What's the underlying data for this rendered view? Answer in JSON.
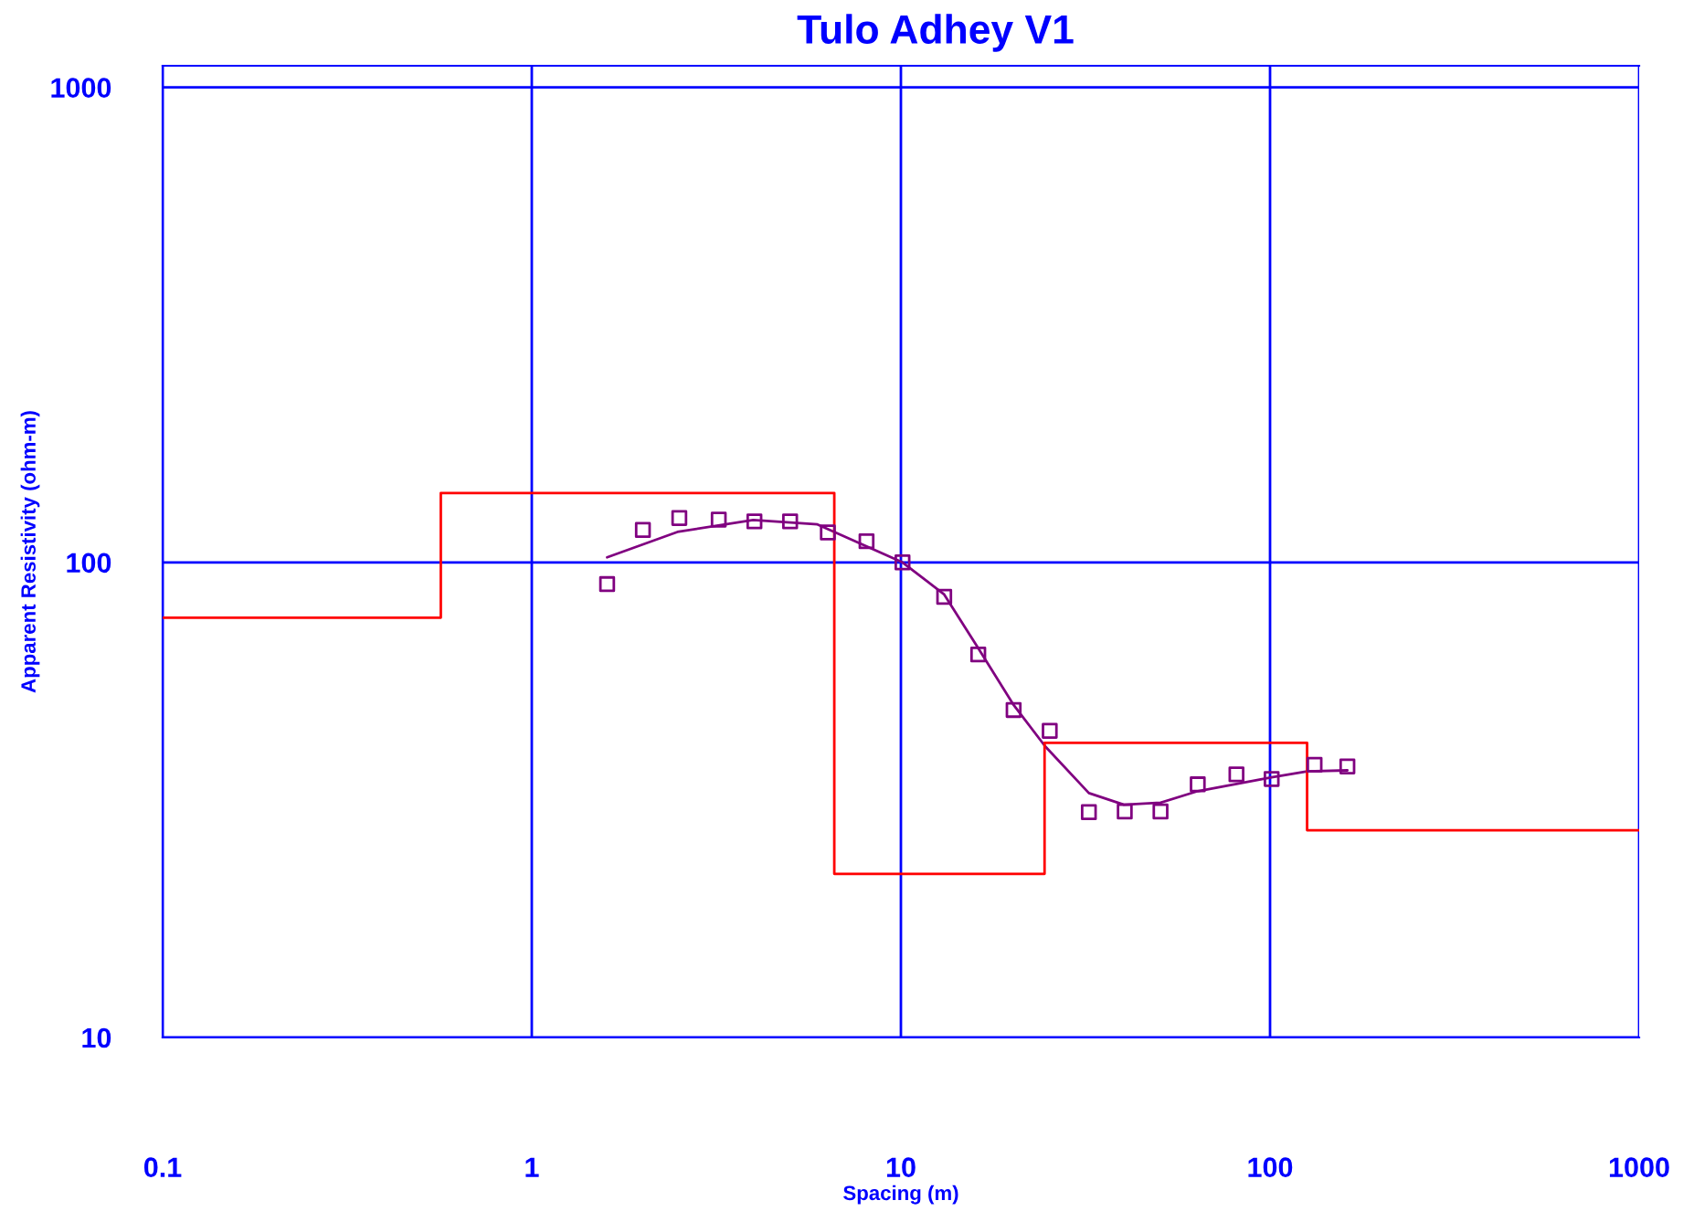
{
  "chart_data": {
    "type": "scatter",
    "title": "Tulo Adhey V1",
    "xlabel": "Spacing (m)",
    "ylabel": "Apparent Resistivity (ohm-m)",
    "log": "xy",
    "grid": true,
    "legend": false,
    "xlim": [
      0.1,
      1000
    ],
    "xticks": [
      0.1,
      1,
      10,
      100,
      1000
    ],
    "ylim": [
      10,
      1110
    ],
    "yticks": [
      10,
      100,
      1000
    ],
    "series": [
      {
        "marker": "square",
        "color": "#800080",
        "x": [
          1.6,
          2.0,
          2.51,
          3.21,
          4.01,
          5.01,
          6.34,
          8.07,
          10.1,
          13.1,
          16.2,
          20.2,
          25.3,
          32.3,
          40.4,
          50.5,
          63.7,
          81.1,
          101,
          132,
          162
        ],
        "values": [
          90,
          117,
          124,
          123,
          122,
          122,
          115.6,
          110.8,
          100,
          84.6,
          64,
          48.9,
          44.2,
          29.8,
          29.9,
          29.9,
          34.1,
          35.8,
          35.0,
          37.5,
          37.2
        ]
      },
      {
        "type": "line",
        "marker": "none",
        "color": "#800080",
        "x": [
          1.6,
          2.48,
          3.98,
          5.94,
          10.1,
          13.1,
          16.2,
          20.2,
          24.6,
          32.3,
          40.2,
          50.5,
          63.7,
          101,
          126,
          162
        ],
        "values": [
          102.5,
          115.9,
          122.8,
          120.2,
          100,
          85.6,
          66,
          50.1,
          41,
          32.7,
          30.9,
          31.2,
          33,
          35.3,
          36.3,
          36.5
        ]
      },
      {
        "type": "step",
        "marker": "none",
        "color": "#ff0000",
        "x": [
          0.1,
          0.567,
          6.6,
          24.5,
          126,
          1000
        ],
        "values": [
          76.5,
          140,
          22.1,
          41.7,
          27.3,
          27.3
        ]
      }
    ]
  }
}
